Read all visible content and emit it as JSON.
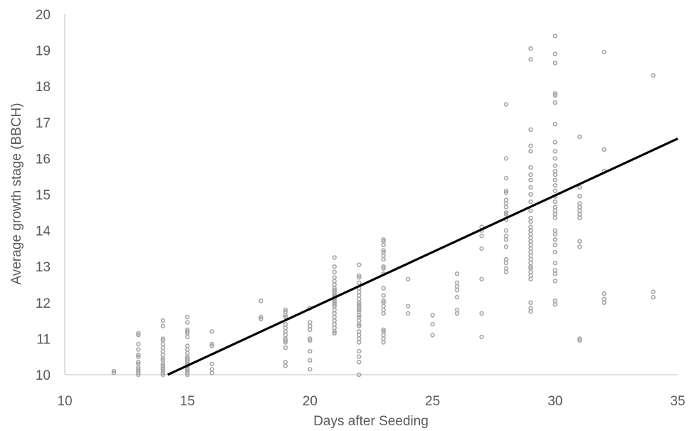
{
  "chart_data": {
    "type": "scatter",
    "title": "",
    "xlabel": "Days after Seeding",
    "ylabel": "Average growth stage (BBCH)",
    "xlim": [
      10,
      35
    ],
    "ylim": [
      10,
      20
    ],
    "x_ticks": [
      "10",
      "15",
      "20",
      "25",
      "30",
      "35"
    ],
    "y_ticks": [
      "10",
      "11",
      "12",
      "13",
      "14",
      "15",
      "16",
      "17",
      "18",
      "19",
      "20"
    ],
    "grid": false,
    "legend": "none",
    "point_color": "#a6a6a6",
    "trendline": {
      "x": [
        14.2,
        35
      ],
      "y": [
        10,
        16.55
      ],
      "color": "#000000"
    },
    "points": [
      [
        12,
        10.1
      ],
      [
        12,
        10.05
      ],
      [
        13,
        11.15
      ],
      [
        13,
        11.1
      ],
      [
        13,
        10.85
      ],
      [
        13,
        10.7
      ],
      [
        13,
        10.55
      ],
      [
        13,
        10.5
      ],
      [
        13,
        10.35
      ],
      [
        13,
        10.3
      ],
      [
        13,
        10.2
      ],
      [
        13,
        10.15
      ],
      [
        13,
        10.1
      ],
      [
        13,
        10.05
      ],
      [
        13,
        10.0
      ],
      [
        14,
        11.5
      ],
      [
        14,
        11.35
      ],
      [
        14,
        11.0
      ],
      [
        14,
        10.95
      ],
      [
        14,
        10.85
      ],
      [
        14,
        10.75
      ],
      [
        14,
        10.65
      ],
      [
        14,
        10.55
      ],
      [
        14,
        10.45
      ],
      [
        14,
        10.4
      ],
      [
        14,
        10.3
      ],
      [
        14,
        10.25
      ],
      [
        14,
        10.2
      ],
      [
        14,
        10.15
      ],
      [
        14,
        10.1
      ],
      [
        14,
        10.05
      ],
      [
        14,
        10.0
      ],
      [
        15,
        11.6
      ],
      [
        15,
        11.45
      ],
      [
        15,
        11.25
      ],
      [
        15,
        11.2
      ],
      [
        15,
        11.15
      ],
      [
        15,
        11.05
      ],
      [
        15,
        10.8
      ],
      [
        15,
        10.7
      ],
      [
        15,
        10.6
      ],
      [
        15,
        10.5
      ],
      [
        15,
        10.45
      ],
      [
        15,
        10.4
      ],
      [
        15,
        10.35
      ],
      [
        15,
        10.3
      ],
      [
        15,
        10.25
      ],
      [
        15,
        10.2
      ],
      [
        15,
        10.15
      ],
      [
        15,
        10.1
      ],
      [
        15,
        10.05
      ],
      [
        15,
        10.0
      ],
      [
        16,
        11.2
      ],
      [
        16,
        10.85
      ],
      [
        16,
        10.8
      ],
      [
        16,
        10.3
      ],
      [
        16,
        10.15
      ],
      [
        16,
        10.05
      ],
      [
        18,
        12.05
      ],
      [
        18,
        11.6
      ],
      [
        18,
        11.55
      ],
      [
        19,
        11.8
      ],
      [
        19,
        11.75
      ],
      [
        19,
        11.65
      ],
      [
        19,
        11.6
      ],
      [
        19,
        11.4
      ],
      [
        19,
        11.3
      ],
      [
        19,
        11.2
      ],
      [
        19,
        11.1
      ],
      [
        19,
        11.0
      ],
      [
        19,
        10.95
      ],
      [
        19,
        10.9
      ],
      [
        19,
        10.75
      ],
      [
        19,
        10.35
      ],
      [
        19,
        10.25
      ],
      [
        20,
        11.85
      ],
      [
        20,
        11.45
      ],
      [
        20,
        11.35
      ],
      [
        20,
        11.25
      ],
      [
        20,
        11.0
      ],
      [
        20,
        10.95
      ],
      [
        20,
        10.65
      ],
      [
        20,
        10.4
      ],
      [
        20,
        10.15
      ],
      [
        21,
        13.25
      ],
      [
        21,
        13.0
      ],
      [
        21,
        12.85
      ],
      [
        21,
        12.7
      ],
      [
        21,
        12.6
      ],
      [
        21,
        12.5
      ],
      [
        21,
        12.4
      ],
      [
        21,
        12.35
      ],
      [
        21,
        12.3
      ],
      [
        21,
        12.25
      ],
      [
        21,
        12.2
      ],
      [
        21,
        12.15
      ],
      [
        21,
        12.1
      ],
      [
        21,
        12.05
      ],
      [
        21,
        12.0
      ],
      [
        21,
        11.95
      ],
      [
        21,
        11.9
      ],
      [
        21,
        11.8
      ],
      [
        21,
        11.7
      ],
      [
        21,
        11.6
      ],
      [
        21,
        11.5
      ],
      [
        21,
        11.4
      ],
      [
        21,
        11.3
      ],
      [
        21,
        11.2
      ],
      [
        21,
        11.15
      ],
      [
        22,
        13.05
      ],
      [
        22,
        12.75
      ],
      [
        22,
        12.7
      ],
      [
        22,
        12.55
      ],
      [
        22,
        12.4
      ],
      [
        22,
        12.3
      ],
      [
        22,
        12.2
      ],
      [
        22,
        12.1
      ],
      [
        22,
        12.0
      ],
      [
        22,
        11.95
      ],
      [
        22,
        11.9
      ],
      [
        22,
        11.85
      ],
      [
        22,
        11.8
      ],
      [
        22,
        11.75
      ],
      [
        22,
        11.65
      ],
      [
        22,
        11.6
      ],
      [
        22,
        11.5
      ],
      [
        22,
        11.4
      ],
      [
        22,
        11.35
      ],
      [
        22,
        11.2
      ],
      [
        22,
        11.1
      ],
      [
        22,
        11.0
      ],
      [
        22,
        10.9
      ],
      [
        22,
        10.65
      ],
      [
        22,
        10.5
      ],
      [
        22,
        10.35
      ],
      [
        22,
        10.0
      ],
      [
        23,
        13.75
      ],
      [
        23,
        13.7
      ],
      [
        23,
        13.6
      ],
      [
        23,
        13.45
      ],
      [
        23,
        13.4
      ],
      [
        23,
        13.3
      ],
      [
        23,
        13.2
      ],
      [
        23,
        13.0
      ],
      [
        23,
        12.95
      ],
      [
        23,
        12.8
      ],
      [
        23,
        12.4
      ],
      [
        23,
        12.2
      ],
      [
        23,
        12.05
      ],
      [
        23,
        12.0
      ],
      [
        23,
        11.9
      ],
      [
        23,
        11.8
      ],
      [
        23,
        11.7
      ],
      [
        23,
        11.25
      ],
      [
        23,
        11.2
      ],
      [
        23,
        11.1
      ],
      [
        23,
        11.0
      ],
      [
        23,
        10.9
      ],
      [
        24,
        12.65
      ],
      [
        24,
        11.9
      ],
      [
        24,
        11.7
      ],
      [
        25,
        11.65
      ],
      [
        25,
        11.4
      ],
      [
        25,
        11.1
      ],
      [
        26,
        12.8
      ],
      [
        26,
        12.55
      ],
      [
        26,
        12.45
      ],
      [
        26,
        12.35
      ],
      [
        26,
        12.15
      ],
      [
        26,
        11.8
      ],
      [
        26,
        11.7
      ],
      [
        27,
        14.1
      ],
      [
        27,
        14.0
      ],
      [
        27,
        13.85
      ],
      [
        27,
        13.5
      ],
      [
        27,
        12.65
      ],
      [
        27,
        11.7
      ],
      [
        27,
        11.05
      ],
      [
        28,
        17.5
      ],
      [
        28,
        16.0
      ],
      [
        28,
        15.45
      ],
      [
        28,
        15.1
      ],
      [
        28,
        15.05
      ],
      [
        28,
        14.85
      ],
      [
        28,
        14.75
      ],
      [
        28,
        14.65
      ],
      [
        28,
        14.5
      ],
      [
        28,
        14.45
      ],
      [
        28,
        14.3
      ],
      [
        28,
        14.0
      ],
      [
        28,
        13.85
      ],
      [
        28,
        13.75
      ],
      [
        28,
        13.55
      ],
      [
        28,
        13.2
      ],
      [
        28,
        13.1
      ],
      [
        28,
        12.95
      ],
      [
        28,
        12.85
      ],
      [
        29,
        19.05
      ],
      [
        29,
        18.75
      ],
      [
        29,
        16.8
      ],
      [
        29,
        16.35
      ],
      [
        29,
        16.2
      ],
      [
        29,
        15.75
      ],
      [
        29,
        15.55
      ],
      [
        29,
        15.4
      ],
      [
        29,
        15.2
      ],
      [
        29,
        15.0
      ],
      [
        29,
        14.8
      ],
      [
        29,
        14.55
      ],
      [
        29,
        14.35
      ],
      [
        29,
        14.25
      ],
      [
        29,
        14.1
      ],
      [
        29,
        14.0
      ],
      [
        29,
        13.9
      ],
      [
        29,
        13.8
      ],
      [
        29,
        13.7
      ],
      [
        29,
        13.6
      ],
      [
        29,
        13.5
      ],
      [
        29,
        13.4
      ],
      [
        29,
        13.3
      ],
      [
        29,
        13.2
      ],
      [
        29,
        13.1
      ],
      [
        29,
        13.0
      ],
      [
        29,
        12.95
      ],
      [
        29,
        12.85
      ],
      [
        29,
        12.75
      ],
      [
        29,
        12.65
      ],
      [
        29,
        12.0
      ],
      [
        29,
        11.85
      ],
      [
        29,
        11.75
      ],
      [
        30,
        19.4
      ],
      [
        30,
        18.9
      ],
      [
        30,
        18.65
      ],
      [
        30,
        17.8
      ],
      [
        30,
        17.75
      ],
      [
        30,
        17.55
      ],
      [
        30,
        16.95
      ],
      [
        30,
        16.45
      ],
      [
        30,
        16.2
      ],
      [
        30,
        16.0
      ],
      [
        30,
        15.8
      ],
      [
        30,
        15.65
      ],
      [
        30,
        15.55
      ],
      [
        30,
        15.4
      ],
      [
        30,
        15.25
      ],
      [
        30,
        15.1
      ],
      [
        30,
        14.95
      ],
      [
        30,
        14.8
      ],
      [
        30,
        14.65
      ],
      [
        30,
        14.55
      ],
      [
        30,
        14.45
      ],
      [
        30,
        14.35
      ],
      [
        30,
        14.0
      ],
      [
        30,
        13.9
      ],
      [
        30,
        13.75
      ],
      [
        30,
        13.6
      ],
      [
        30,
        13.4
      ],
      [
        30,
        13.1
      ],
      [
        30,
        12.9
      ],
      [
        30,
        12.8
      ],
      [
        30,
        12.6
      ],
      [
        30,
        12.05
      ],
      [
        30,
        11.95
      ],
      [
        31,
        16.6
      ],
      [
        31,
        15.2
      ],
      [
        31,
        14.95
      ],
      [
        31,
        14.75
      ],
      [
        31,
        14.65
      ],
      [
        31,
        14.55
      ],
      [
        31,
        14.45
      ],
      [
        31,
        14.35
      ],
      [
        31,
        13.7
      ],
      [
        31,
        13.55
      ],
      [
        31,
        11.0
      ],
      [
        31,
        10.95
      ],
      [
        32,
        18.95
      ],
      [
        32,
        16.25
      ],
      [
        32,
        15.65
      ],
      [
        32,
        12.25
      ],
      [
        32,
        12.1
      ],
      [
        32,
        12.0
      ],
      [
        34,
        18.3
      ],
      [
        34,
        12.3
      ],
      [
        34,
        12.15
      ]
    ]
  }
}
